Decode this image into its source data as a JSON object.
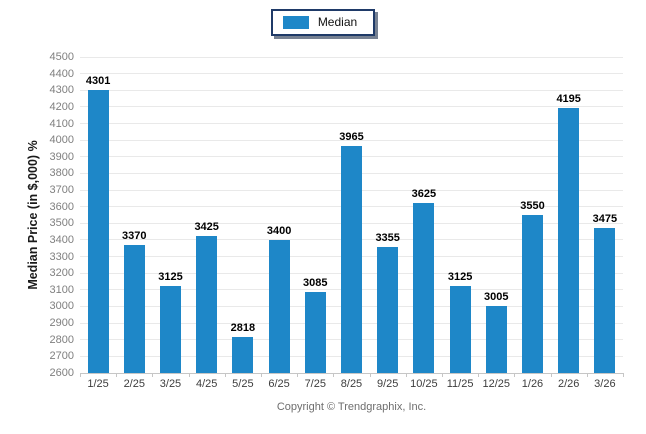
{
  "legend": {
    "position": "top-center"
  },
  "chart_data": {
    "type": "bar",
    "title": "",
    "categories": [
      "1/25",
      "2/25",
      "3/25",
      "4/25",
      "5/25",
      "6/25",
      "7/25",
      "8/25",
      "9/25",
      "10/25",
      "11/25",
      "12/25",
      "1/26",
      "2/26",
      "3/26"
    ],
    "series": [
      {
        "name": "Median",
        "values": [
          4301,
          3370,
          3125,
          3425,
          2818,
          3400,
          3085,
          3965,
          3355,
          3625,
          3125,
          3005,
          3550,
          4195,
          3475
        ]
      }
    ],
    "xlabel": "",
    "ylabel": "Median Price (in $,000) %",
    "ylim": [
      2600,
      4500
    ],
    "ytick_step": 100,
    "bar_color": "#1e87c8",
    "grid": true,
    "value_labels": true,
    "legend_position": "top-center"
  },
  "footer": {
    "copyright": "Copyright © Trendgraphix, Inc."
  }
}
